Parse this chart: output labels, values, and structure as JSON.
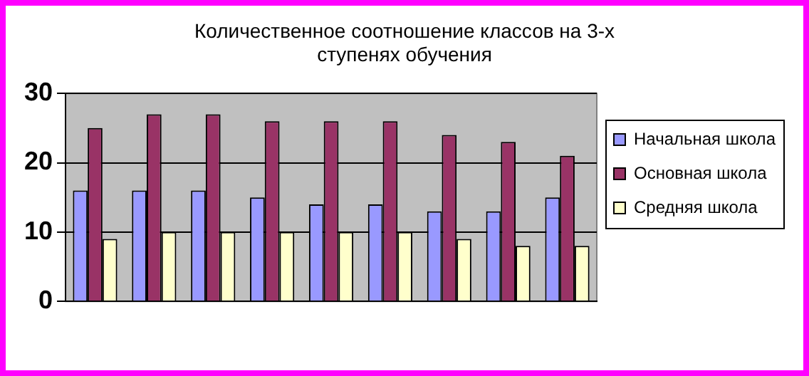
{
  "chart_data": {
    "type": "bar",
    "title": "Количественное соотношение классов на 3-х ступенях обучения",
    "categories": [
      null,
      null,
      null,
      null,
      null,
      null,
      null,
      null,
      null
    ],
    "series": [
      {
        "name": "Начальная школа",
        "color": "#9999ff",
        "values": [
          16,
          16,
          16,
          15,
          14,
          14,
          13,
          13,
          15
        ]
      },
      {
        "name": "Основная школа",
        "color": "#993366",
        "values": [
          25,
          27,
          27,
          26,
          26,
          26,
          24,
          23,
          21
        ]
      },
      {
        "name": "Средняя школа",
        "color": "#ffffcc",
        "values": [
          9,
          10,
          10,
          10,
          10,
          10,
          9,
          8,
          8
        ]
      }
    ],
    "ylim": [
      0,
      30
    ],
    "yticks": [
      0,
      10,
      20,
      30
    ],
    "grid": "y",
    "legend": "right"
  }
}
